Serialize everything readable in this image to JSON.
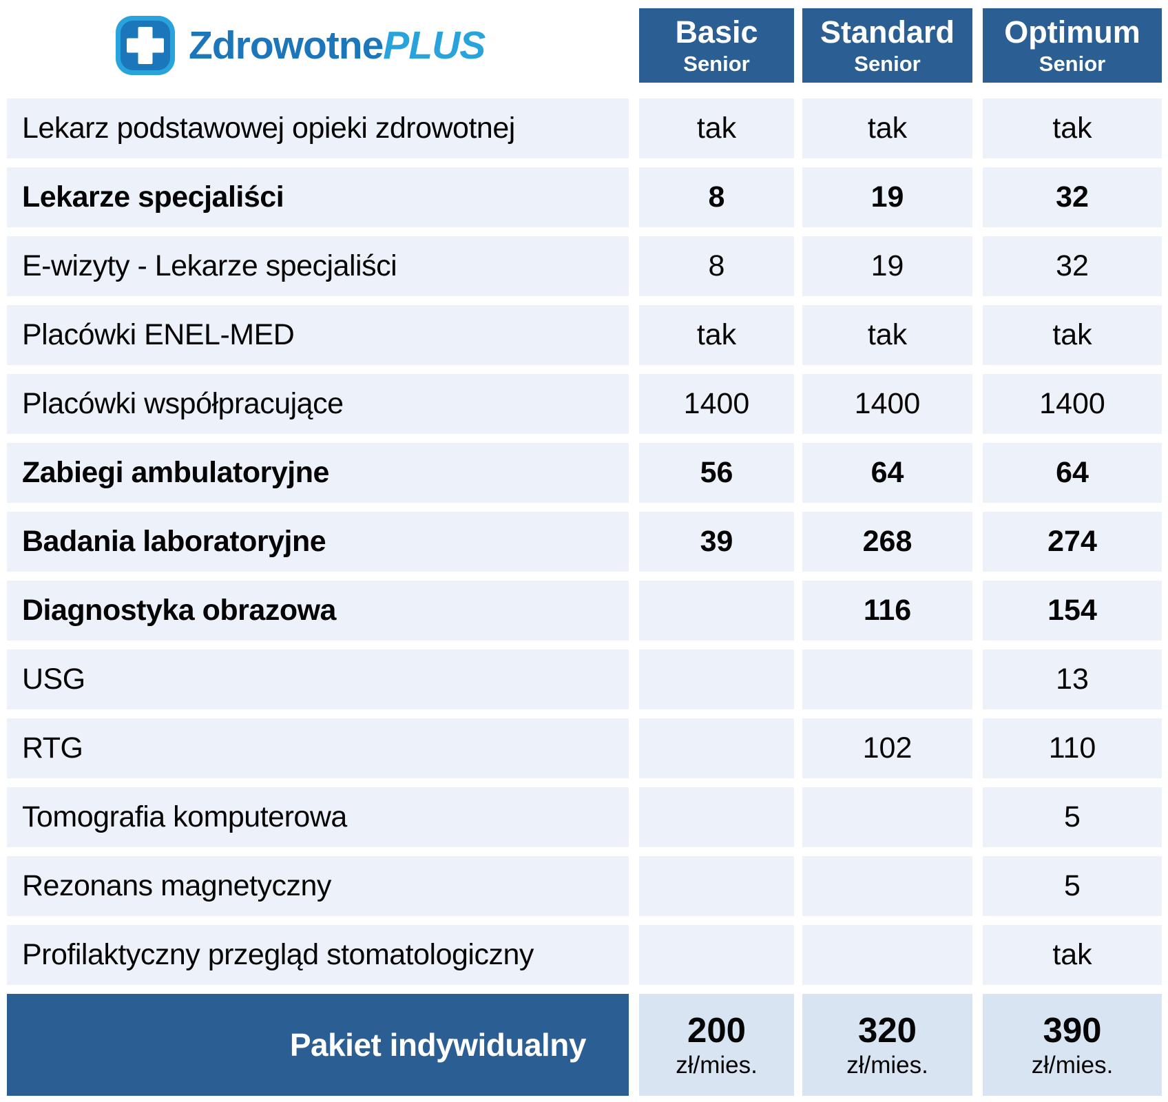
{
  "logo": {
    "brand": "Zdrowotne",
    "brand_suffix": "PLUS"
  },
  "colors": {
    "dark_blue": "#2B5F93",
    "row_bg": "#EDF2FA",
    "price_bg": "#D8E4F2",
    "logo_dark": "#1B76BA",
    "logo_light": "#29A3DC"
  },
  "plans": [
    {
      "name": "Basic",
      "tier": "Senior"
    },
    {
      "name": "Standard",
      "tier": "Senior"
    },
    {
      "name": "Optimum",
      "tier": "Senior"
    }
  ],
  "rows": [
    {
      "label": "Lekarz podstawowej opieki zdrowotnej",
      "bold": false,
      "values": [
        "tak",
        "tak",
        "tak"
      ]
    },
    {
      "label": "Lekarze specjaliści",
      "bold": true,
      "values": [
        "8",
        "19",
        "32"
      ]
    },
    {
      "label": "E-wizyty - Lekarze specjaliści",
      "bold": false,
      "values": [
        "8",
        "19",
        "32"
      ]
    },
    {
      "label": "Placówki ENEL-MED",
      "bold": false,
      "values": [
        "tak",
        "tak",
        "tak"
      ]
    },
    {
      "label": "Placówki współpracujące",
      "bold": false,
      "values": [
        "1400",
        "1400",
        "1400"
      ]
    },
    {
      "label": "Zabiegi ambulatoryjne",
      "bold": true,
      "values": [
        "56",
        "64",
        "64"
      ]
    },
    {
      "label": "Badania laboratoryjne",
      "bold": true,
      "values": [
        "39",
        "268",
        "274"
      ]
    },
    {
      "label": "Diagnostyka obrazowa",
      "bold": true,
      "values": [
        "",
        "116",
        "154"
      ]
    },
    {
      "label": "USG",
      "bold": false,
      "values": [
        "",
        "",
        "13"
      ]
    },
    {
      "label": "RTG",
      "bold": false,
      "values": [
        "",
        "102",
        "110"
      ]
    },
    {
      "label": "Tomografia komputerowa",
      "bold": false,
      "values": [
        "",
        "",
        "5"
      ]
    },
    {
      "label": "Rezonans magnetyczny",
      "bold": false,
      "values": [
        "",
        "",
        "5"
      ]
    },
    {
      "label": "Profilaktyczny przegląd stomatologiczny",
      "bold": false,
      "values": [
        "",
        "",
        "tak"
      ]
    }
  ],
  "footer": {
    "label": "Pakiet indywidualny",
    "prices": [
      {
        "amount": "200",
        "unit": "zł/mies."
      },
      {
        "amount": "320",
        "unit": "zł/mies."
      },
      {
        "amount": "390",
        "unit": "zł/mies."
      }
    ]
  },
  "chart_data": {
    "type": "table",
    "title": "ZdrowotnePLUS",
    "columns": [
      "Basic Senior",
      "Standard Senior",
      "Optimum Senior"
    ],
    "row_labels": [
      "Lekarz podstawowej opieki zdrowotnej",
      "Lekarze specjaliści",
      "E-wizyty - Lekarze specjaliści",
      "Placówki ENEL-MED",
      "Placówki współpracujące",
      "Zabiegi ambulatoryjne",
      "Badania laboratoryjne",
      "Diagnostyka obrazowa",
      "USG",
      "RTG",
      "Tomografia komputerowa",
      "Rezonans magnetyczny",
      "Profilaktyczny przegląd stomatologiczny",
      "Pakiet indywidualny"
    ],
    "cells": [
      [
        "tak",
        "tak",
        "tak"
      ],
      [
        8,
        19,
        32
      ],
      [
        8,
        19,
        32
      ],
      [
        "tak",
        "tak",
        "tak"
      ],
      [
        1400,
        1400,
        1400
      ],
      [
        56,
        64,
        64
      ],
      [
        39,
        268,
        274
      ],
      [
        null,
        116,
        154
      ],
      [
        null,
        null,
        13
      ],
      [
        null,
        102,
        110
      ],
      [
        null,
        null,
        5
      ],
      [
        null,
        null,
        5
      ],
      [
        null,
        null,
        "tak"
      ],
      [
        "200 zł/mies.",
        "320 zł/mies.",
        "390 zł/mies."
      ]
    ]
  }
}
